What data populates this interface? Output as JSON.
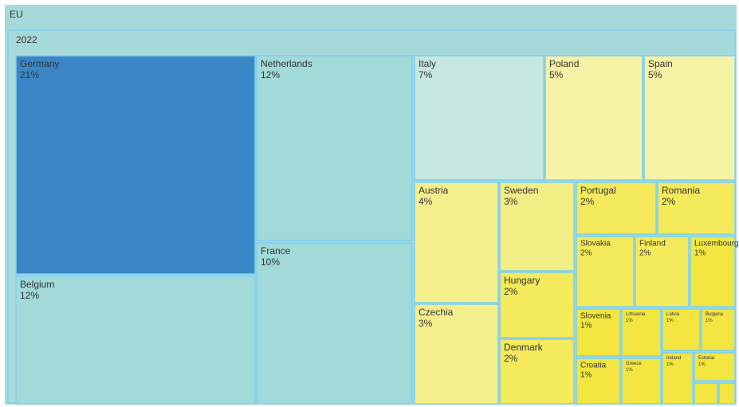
{
  "chart_data": {
    "type": "treemap",
    "root": "EU",
    "group": "2022",
    "categories": [
      "Germany",
      "Belgium",
      "Netherlands",
      "France",
      "Italy",
      "Poland",
      "Spain",
      "Austria",
      "Czechia",
      "Sweden",
      "Hungary",
      "Denmark",
      "Portugal",
      "Romania",
      "Slovakia",
      "Finland",
      "Luxembourg",
      "Slovenia",
      "Lithuania",
      "Latvia",
      "Bulgaria",
      "Croatia",
      "Greece",
      "Ireland",
      "Estonia"
    ],
    "values": [
      21,
      12,
      12,
      10,
      7,
      5,
      5,
      4,
      3,
      3,
      2,
      2,
      2,
      2,
      2,
      2,
      1,
      1,
      1,
      1,
      1,
      1,
      1,
      1,
      1
    ],
    "value_labels": [
      "21%",
      "12%",
      "12%",
      "10%",
      "7%",
      "5%",
      "5%",
      "4%",
      "3%",
      "3%",
      "2%",
      "2%",
      "2%",
      "2%",
      "2%",
      "2%",
      "1%",
      "1%",
      "1%",
      "1%",
      "1%",
      "1%",
      "1%",
      "1%",
      "1%"
    ],
    "colors": [
      "#3b86c6",
      "#a2d9d9",
      "#a2d9d9",
      "#a2d9d9",
      "#c7e7e1",
      "#f6f2a6",
      "#f6f2a6",
      "#f4ef8c",
      "#f4ef8c",
      "#f3ed86",
      "#f4ea5c",
      "#f4ea5c",
      "#f4ea5c",
      "#f4ea5c",
      "#f4ea5c",
      "#f4ea5c",
      "#f3e640",
      "#f3e640",
      "#f3e640",
      "#f3e640",
      "#f3e640",
      "#f3e640",
      "#f3e640",
      "#f3e640",
      "#f3e640"
    ]
  }
}
